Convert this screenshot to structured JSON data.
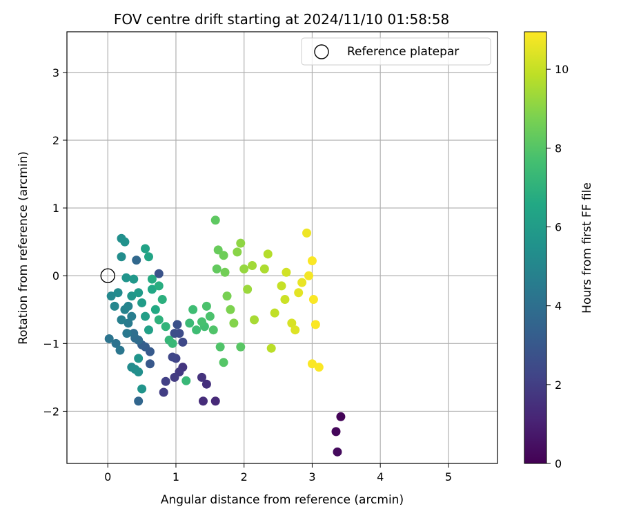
{
  "chart_data": {
    "type": "scatter",
    "title": "FOV centre drift starting at 2024/11/10 01:58:58",
    "xlabel": "Angular distance from reference (arcmin)",
    "ylabel": "Rotation from reference (arcmin)",
    "xlim": [
      -0.6,
      5.72
    ],
    "ylim": [
      -2.77,
      3.6
    ],
    "xticks": [
      0,
      1,
      2,
      3,
      4,
      5
    ],
    "xtick_labels": [
      "0",
      "1",
      "2",
      "3",
      "4",
      "5"
    ],
    "yticks": [
      -2,
      -1,
      0,
      1,
      2,
      3
    ],
    "ytick_labels": [
      "−2",
      "−1",
      "0",
      "1",
      "2",
      "3"
    ],
    "grid": true,
    "legend_position": "top-right",
    "colormap": "viridis",
    "colorbar": {
      "label": "Hours from first FF file",
      "range": [
        0,
        10.95
      ],
      "ticks": [
        0,
        2,
        4,
        6,
        8,
        10
      ],
      "tick_labels": [
        "0",
        "2",
        "4",
        "6",
        "8",
        "10"
      ]
    },
    "reference": {
      "label": "Reference platepar",
      "x": 0,
      "y": 0
    },
    "series": [
      {
        "description": "color value c = hours from first FF file",
        "points": [
          {
            "x": 3.42,
            "y": -2.08,
            "c": 0.1
          },
          {
            "x": 3.35,
            "y": -2.3,
            "c": 0.2
          },
          {
            "x": 3.37,
            "y": -2.6,
            "c": 0.3
          },
          {
            "x": 1.58,
            "y": -1.85,
            "c": 1.3
          },
          {
            "x": 1.4,
            "y": -1.85,
            "c": 1.4
          },
          {
            "x": 1.45,
            "y": -1.6,
            "c": 1.5
          },
          {
            "x": 1.38,
            "y": -1.5,
            "c": 1.6
          },
          {
            "x": 1.1,
            "y": -1.35,
            "c": 1.7
          },
          {
            "x": 1.05,
            "y": -1.42,
            "c": 1.8
          },
          {
            "x": 0.98,
            "y": -1.5,
            "c": 1.9
          },
          {
            "x": 0.82,
            "y": -1.72,
            "c": 2.0
          },
          {
            "x": 0.85,
            "y": -1.56,
            "c": 2.1
          },
          {
            "x": 1.0,
            "y": -1.22,
            "c": 2.2
          },
          {
            "x": 0.95,
            "y": -1.2,
            "c": 2.3
          },
          {
            "x": 1.1,
            "y": -0.98,
            "c": 2.4
          },
          {
            "x": 1.05,
            "y": -0.85,
            "c": 2.5
          },
          {
            "x": 0.98,
            "y": -0.85,
            "c": 2.6
          },
          {
            "x": 1.02,
            "y": -0.72,
            "c": 2.7
          },
          {
            "x": 0.75,
            "y": 0.03,
            "c": 2.8
          },
          {
            "x": 0.62,
            "y": -1.3,
            "c": 3.0
          },
          {
            "x": 0.62,
            "y": -1.12,
            "c": 3.1
          },
          {
            "x": 0.55,
            "y": -1.05,
            "c": 3.2
          },
          {
            "x": 0.5,
            "y": -1.02,
            "c": 3.3
          },
          {
            "x": 0.45,
            "y": -1.85,
            "c": 3.6
          },
          {
            "x": 0.42,
            "y": 0.23,
            "c": 3.7
          },
          {
            "x": 0.45,
            "y": -0.95,
            "c": 3.8
          },
          {
            "x": 0.4,
            "y": -0.92,
            "c": 3.9
          },
          {
            "x": 0.38,
            "y": -0.85,
            "c": 4.0
          },
          {
            "x": 0.12,
            "y": -1.0,
            "c": 4.1
          },
          {
            "x": 0.02,
            "y": -0.93,
            "c": 4.2
          },
          {
            "x": 0.18,
            "y": -1.1,
            "c": 4.3
          },
          {
            "x": 0.28,
            "y": -0.85,
            "c": 4.4
          },
          {
            "x": 0.3,
            "y": -0.7,
            "c": 4.5
          },
          {
            "x": 0.35,
            "y": -0.6,
            "c": 4.6
          },
          {
            "x": 0.2,
            "y": -0.65,
            "c": 4.7
          },
          {
            "x": 0.25,
            "y": -0.5,
            "c": 4.8
          },
          {
            "x": 0.3,
            "y": -0.45,
            "c": 4.9
          },
          {
            "x": 0.1,
            "y": -0.45,
            "c": 5.0
          },
          {
            "x": 0.05,
            "y": -0.3,
            "c": 5.1
          },
          {
            "x": 0.15,
            "y": -0.25,
            "c": 5.2
          },
          {
            "x": 0.2,
            "y": 0.28,
            "c": 5.3
          },
          {
            "x": 0.2,
            "y": 0.55,
            "c": 5.4
          },
          {
            "x": 0.25,
            "y": 0.5,
            "c": 5.5
          },
          {
            "x": 0.27,
            "y": -0.03,
            "c": 5.6
          },
          {
            "x": 0.35,
            "y": -0.3,
            "c": 5.7
          },
          {
            "x": 0.38,
            "y": -0.05,
            "c": 5.8
          },
          {
            "x": 0.45,
            "y": -0.25,
            "c": 5.9
          },
          {
            "x": 0.5,
            "y": -0.4,
            "c": 6.0
          },
          {
            "x": 0.55,
            "y": -0.6,
            "c": 6.1
          },
          {
            "x": 0.6,
            "y": -0.8,
            "c": 6.2
          },
          {
            "x": 0.55,
            "y": 0.4,
            "c": 6.3
          },
          {
            "x": 0.6,
            "y": 0.28,
            "c": 6.4
          },
          {
            "x": 0.35,
            "y": -1.35,
            "c": 5.2
          },
          {
            "x": 0.4,
            "y": -1.38,
            "c": 5.3
          },
          {
            "x": 0.45,
            "y": -1.42,
            "c": 5.4
          },
          {
            "x": 0.5,
            "y": -1.67,
            "c": 5.6
          },
          {
            "x": 0.45,
            "y": -1.22,
            "c": 5.6
          },
          {
            "x": 0.65,
            "y": -0.2,
            "c": 6.5
          },
          {
            "x": 0.7,
            "y": -0.5,
            "c": 6.6
          },
          {
            "x": 0.65,
            "y": -0.05,
            "c": 6.7
          },
          {
            "x": 0.75,
            "y": -0.15,
            "c": 6.8
          },
          {
            "x": 0.8,
            "y": -0.35,
            "c": 6.9
          },
          {
            "x": 0.75,
            "y": -0.65,
            "c": 7.0
          },
          {
            "x": 0.85,
            "y": -0.75,
            "c": 7.1
          },
          {
            "x": 0.9,
            "y": -0.95,
            "c": 7.2
          },
          {
            "x": 0.95,
            "y": -1.0,
            "c": 7.3
          },
          {
            "x": 1.15,
            "y": -1.55,
            "c": 7.3
          },
          {
            "x": 1.2,
            "y": -0.7,
            "c": 7.4
          },
          {
            "x": 1.25,
            "y": -0.5,
            "c": 7.5
          },
          {
            "x": 1.3,
            "y": -0.8,
            "c": 7.5
          },
          {
            "x": 1.42,
            "y": -0.75,
            "c": 7.6
          },
          {
            "x": 1.38,
            "y": -0.68,
            "c": 7.7
          },
          {
            "x": 1.45,
            "y": -0.45,
            "c": 7.8
          },
          {
            "x": 1.5,
            "y": -0.6,
            "c": 7.8
          },
          {
            "x": 1.55,
            "y": -0.8,
            "c": 7.9
          },
          {
            "x": 1.65,
            "y": -1.05,
            "c": 7.9
          },
          {
            "x": 1.7,
            "y": -1.28,
            "c": 8.0
          },
          {
            "x": 1.95,
            "y": -1.05,
            "c": 8.1
          },
          {
            "x": 1.58,
            "y": 0.82,
            "c": 8.2
          },
          {
            "x": 1.6,
            "y": 0.1,
            "c": 8.3
          },
          {
            "x": 1.62,
            "y": 0.38,
            "c": 8.4
          },
          {
            "x": 1.7,
            "y": 0.3,
            "c": 8.5
          },
          {
            "x": 1.72,
            "y": 0.05,
            "c": 8.6
          },
          {
            "x": 1.75,
            "y": -0.3,
            "c": 8.7
          },
          {
            "x": 1.8,
            "y": -0.5,
            "c": 8.8
          },
          {
            "x": 1.85,
            "y": -0.7,
            "c": 8.9
          },
          {
            "x": 1.9,
            "y": 0.35,
            "c": 9.0
          },
          {
            "x": 1.95,
            "y": 0.48,
            "c": 9.1
          },
          {
            "x": 2.0,
            "y": 0.1,
            "c": 9.2
          },
          {
            "x": 2.05,
            "y": -0.2,
            "c": 9.3
          },
          {
            "x": 2.12,
            "y": 0.15,
            "c": 9.4
          },
          {
            "x": 2.15,
            "y": -0.65,
            "c": 9.5
          },
          {
            "x": 2.3,
            "y": 0.1,
            "c": 9.6
          },
          {
            "x": 2.35,
            "y": 0.32,
            "c": 9.7
          },
          {
            "x": 2.4,
            "y": -1.07,
            "c": 9.8
          },
          {
            "x": 2.45,
            "y": -0.55,
            "c": 9.9
          },
          {
            "x": 2.55,
            "y": -0.15,
            "c": 10.0
          },
          {
            "x": 2.6,
            "y": -0.35,
            "c": 10.1
          },
          {
            "x": 2.62,
            "y": 0.05,
            "c": 10.2
          },
          {
            "x": 2.7,
            "y": -0.7,
            "c": 10.3
          },
          {
            "x": 2.75,
            "y": -0.8,
            "c": 10.4
          },
          {
            "x": 2.8,
            "y": -0.25,
            "c": 10.5
          },
          {
            "x": 2.85,
            "y": -0.1,
            "c": 10.6
          },
          {
            "x": 2.92,
            "y": 0.63,
            "c": 10.7
          },
          {
            "x": 2.95,
            "y": 0.0,
            "c": 10.8
          },
          {
            "x": 3.0,
            "y": 0.22,
            "c": 10.9
          },
          {
            "x": 3.02,
            "y": -0.35,
            "c": 10.9
          },
          {
            "x": 3.05,
            "y": -0.72,
            "c": 10.9
          },
          {
            "x": 3.0,
            "y": -1.3,
            "c": 10.9
          },
          {
            "x": 3.1,
            "y": -1.35,
            "c": 10.9
          }
        ]
      }
    ]
  }
}
